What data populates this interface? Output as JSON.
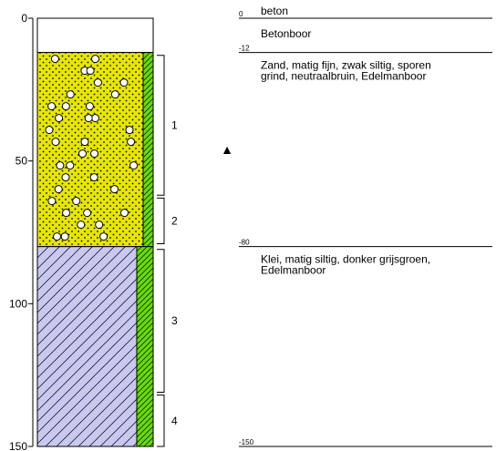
{
  "depth_axis": {
    "ticks": [
      {
        "value": 0,
        "label": "0"
      },
      {
        "value": 50,
        "label": "50"
      },
      {
        "value": 100,
        "label": "100"
      },
      {
        "value": 150,
        "label": "150"
      }
    ],
    "min": 0,
    "max": 150
  },
  "layers": [
    {
      "top": 0,
      "bottom": 12,
      "pattern": "blank",
      "fill": "#ffffff",
      "depth_label": "0",
      "descriptions": [
        "beton",
        "Betonboor"
      ]
    },
    {
      "top": 12,
      "bottom": 80,
      "pattern": "sand-gravel",
      "fill": "#e6e600",
      "depth_label": "-12",
      "descriptions": [
        "Zand, matig fijn, zwak siltig, sporen",
        "grind, neutraalbruin, Edelmanboor"
      ]
    },
    {
      "top": 80,
      "bottom": 150,
      "pattern": "clay",
      "fill": "#c8c8f0",
      "depth_label": "-80",
      "descriptions": [
        "Klei, matig siltig, donker grijsgroen,",
        "Edelmanboor"
      ]
    }
  ],
  "end_label": "-150",
  "samples": [
    {
      "top": 13,
      "bottom": 62,
      "label": "1"
    },
    {
      "top": 63,
      "bottom": 79,
      "label": "2"
    },
    {
      "top": 81,
      "bottom": 131,
      "label": "3"
    },
    {
      "top": 132,
      "bottom": 150,
      "label": "4"
    }
  ],
  "water_level": {
    "depth": 46,
    "symbol": "▲"
  },
  "colors": {
    "sand": "#e6e600",
    "clay": "#c8c8f0",
    "green_strip": "#66dd00",
    "line": "#000000"
  }
}
